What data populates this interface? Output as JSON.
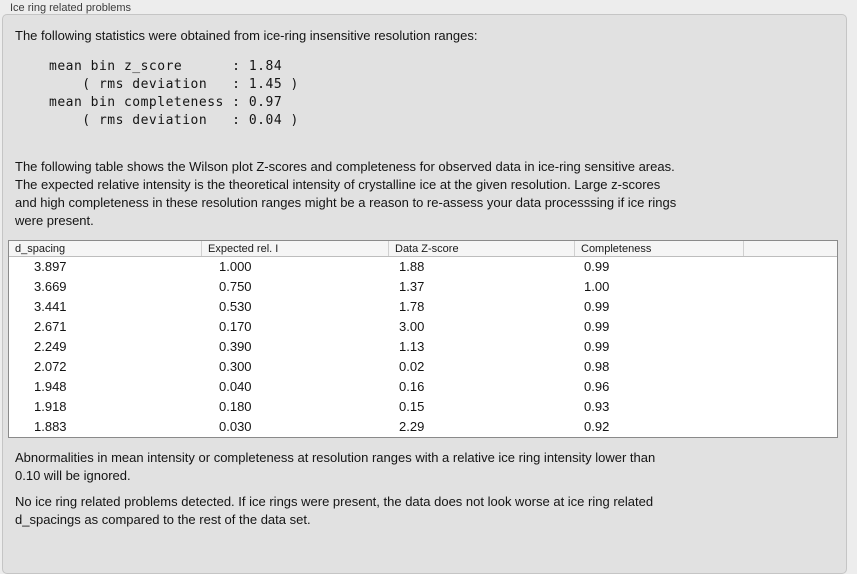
{
  "panel": {
    "title": "Ice ring related problems"
  },
  "intro": {
    "text": "The following statistics were obtained from ice-ring insensitive resolution ranges:"
  },
  "stats": {
    "lines": [
      "mean bin z_score      : 1.84",
      "    ( rms deviation   : 1.45 )",
      "mean bin completeness : 0.97",
      "    ( rms deviation   : 0.04 )"
    ],
    "mean_bin_z_score": "1.84",
    "z_score_rms_deviation": "1.45",
    "mean_bin_completeness": "0.97",
    "completeness_rms_deviation": "0.04"
  },
  "description": {
    "lines": [
      "The following table shows the Wilson plot Z-scores and completeness for observed data in ice-ring sensitive areas.",
      "The expected relative intensity is the theoretical intensity of crystalline ice at the given resolution. Large z-scores",
      "and high completeness in these resolution ranges might be a reason to re-assess your data processsing if ice rings",
      "were present."
    ]
  },
  "table": {
    "columns": [
      "d_spacing",
      "Expected rel. I",
      "Data Z-score",
      "Completeness",
      ""
    ],
    "rows": [
      [
        "3.897",
        "1.000",
        "1.88",
        "0.99"
      ],
      [
        "3.669",
        "0.750",
        "1.37",
        "1.00"
      ],
      [
        "3.441",
        "0.530",
        "1.78",
        "0.99"
      ],
      [
        "2.671",
        "0.170",
        "3.00",
        "0.99"
      ],
      [
        "2.249",
        "0.390",
        "1.13",
        "0.99"
      ],
      [
        "2.072",
        "0.300",
        "0.02",
        "0.98"
      ],
      [
        "1.948",
        "0.040",
        "0.16",
        "0.96"
      ],
      [
        "1.918",
        "0.180",
        "0.15",
        "0.93"
      ],
      [
        "1.883",
        "0.030",
        "2.29",
        "0.92"
      ]
    ]
  },
  "notes": {
    "threshold_lines": [
      "Abnormalities in mean intensity or completeness at resolution ranges with a relative ice ring intensity lower than",
      "0.10 will be ignored."
    ],
    "conclusion_lines": [
      "No ice ring related problems detected. If ice rings were present, the data does not look worse at ice ring related",
      "d_spacings as compared to the rest of the data set."
    ]
  }
}
